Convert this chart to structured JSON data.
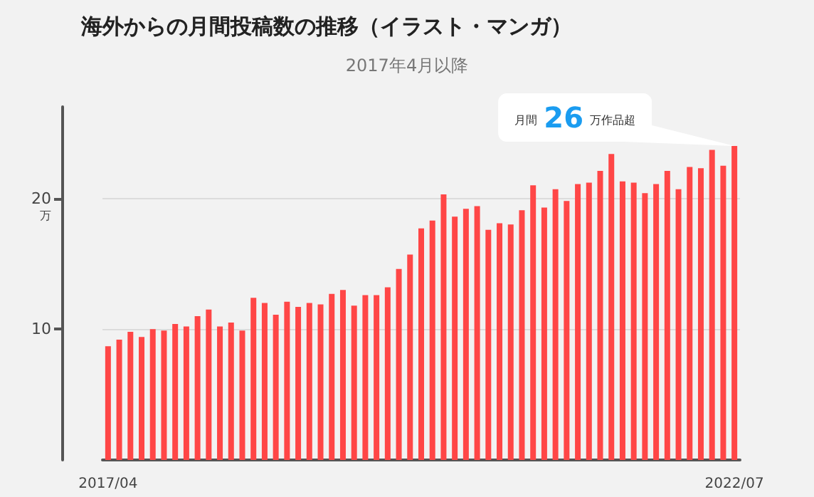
{
  "chart_data": {
    "type": "bar",
    "title": "海外からの月間投稿数の推移（イラスト・マンガ）",
    "subtitle": "2017年4月以降",
    "ylabel": "万",
    "categories": [
      "2017/04",
      null,
      null,
      null,
      null,
      null,
      null,
      null,
      null,
      null,
      null,
      null,
      null,
      null,
      null,
      null,
      null,
      null,
      null,
      null,
      null,
      null,
      null,
      null,
      null,
      null,
      null,
      null,
      null,
      null,
      null,
      null,
      null,
      null,
      null,
      null,
      null,
      null,
      null,
      null,
      null,
      null,
      null,
      null,
      null,
      null,
      null,
      null,
      null,
      null,
      null,
      null,
      null,
      null,
      null,
      null,
      "2022/07"
    ],
    "values": [
      8.7,
      9.2,
      9.8,
      9.4,
      10.0,
      9.9,
      10.4,
      10.2,
      11.0,
      11.5,
      10.2,
      10.5,
      9.9,
      12.4,
      12.0,
      11.1,
      12.1,
      11.7,
      12.0,
      11.9,
      12.7,
      13.0,
      11.8,
      12.6,
      12.6,
      13.2,
      14.6,
      15.7,
      17.7,
      18.3,
      20.3,
      18.6,
      19.2,
      19.4,
      17.6,
      18.1,
      18.0,
      19.1,
      21.0,
      19.3,
      20.7,
      19.8,
      21.1,
      21.2,
      22.1,
      23.4,
      21.3,
      21.2,
      20.4,
      21.1,
      22.1,
      20.7,
      22.4,
      22.3,
      23.7,
      22.5,
      24.0
    ],
    "color": "#ff4646",
    "ylim": [
      0,
      27
    ],
    "yticks": [
      10,
      20
    ],
    "grid": "y",
    "annotations": [
      {
        "text": "月間 26 万作品超",
        "x": "2022/07",
        "y": 24.0
      }
    ]
  }
}
